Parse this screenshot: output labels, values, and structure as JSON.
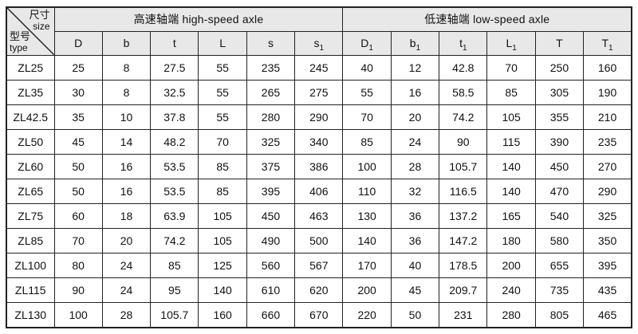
{
  "table": {
    "corner": {
      "size_cn": "尺寸",
      "size_en": "size",
      "type_cn": "型号",
      "type_en": "type"
    },
    "groups": [
      {
        "label": "高速轴端 high-speed axle",
        "columns": [
          {
            "base": "D",
            "sub": ""
          },
          {
            "base": "b",
            "sub": ""
          },
          {
            "base": "t",
            "sub": ""
          },
          {
            "base": "L",
            "sub": ""
          },
          {
            "base": "s",
            "sub": ""
          },
          {
            "base": "s",
            "sub": "1"
          }
        ]
      },
      {
        "label": "低速轴端 low-speed axle",
        "columns": [
          {
            "base": "D",
            "sub": "1"
          },
          {
            "base": "b",
            "sub": "1"
          },
          {
            "base": "t",
            "sub": "1"
          },
          {
            "base": "L",
            "sub": "1"
          },
          {
            "base": "T",
            "sub": ""
          },
          {
            "base": "T",
            "sub": "1"
          }
        ]
      }
    ],
    "rows": [
      {
        "model": "ZL25",
        "values": [
          "25",
          "8",
          "27.5",
          "55",
          "235",
          "245",
          "40",
          "12",
          "42.8",
          "70",
          "250",
          "160"
        ]
      },
      {
        "model": "ZL35",
        "values": [
          "30",
          "8",
          "32.5",
          "55",
          "265",
          "275",
          "55",
          "16",
          "58.5",
          "85",
          "305",
          "190"
        ]
      },
      {
        "model": "ZL42.5",
        "values": [
          "35",
          "10",
          "37.8",
          "55",
          "280",
          "290",
          "70",
          "20",
          "74.2",
          "105",
          "355",
          "210"
        ]
      },
      {
        "model": "ZL50",
        "values": [
          "45",
          "14",
          "48.2",
          "70",
          "325",
          "340",
          "85",
          "24",
          "90",
          "115",
          "390",
          "235"
        ]
      },
      {
        "model": "ZL60",
        "values": [
          "50",
          "16",
          "53.5",
          "85",
          "375",
          "386",
          "100",
          "28",
          "105.7",
          "140",
          "450",
          "270"
        ]
      },
      {
        "model": "ZL65",
        "values": [
          "50",
          "16",
          "53.5",
          "85",
          "395",
          "406",
          "110",
          "32",
          "116.5",
          "140",
          "470",
          "290"
        ]
      },
      {
        "model": "ZL75",
        "values": [
          "60",
          "18",
          "63.9",
          "105",
          "450",
          "463",
          "130",
          "36",
          "137.2",
          "165",
          "540",
          "325"
        ]
      },
      {
        "model": "ZL85",
        "values": [
          "70",
          "20",
          "74.2",
          "105",
          "490",
          "500",
          "140",
          "36",
          "147.2",
          "180",
          "580",
          "350"
        ]
      },
      {
        "model": "ZL100",
        "values": [
          "80",
          "24",
          "85",
          "125",
          "560",
          "567",
          "170",
          "40",
          "178.5",
          "200",
          "655",
          "395"
        ]
      },
      {
        "model": "ZL115",
        "values": [
          "90",
          "24",
          "95",
          "140",
          "610",
          "620",
          "200",
          "45",
          "209.7",
          "240",
          "735",
          "435"
        ]
      },
      {
        "model": "ZL130",
        "values": [
          "100",
          "28",
          "105.7",
          "160",
          "660",
          "670",
          "220",
          "50",
          "231",
          "280",
          "805",
          "465"
        ]
      }
    ],
    "colors": {
      "header_bg": "#e8e8e8",
      "border": "#222222",
      "text": "#111111",
      "page_bg": "#ffffff"
    }
  }
}
